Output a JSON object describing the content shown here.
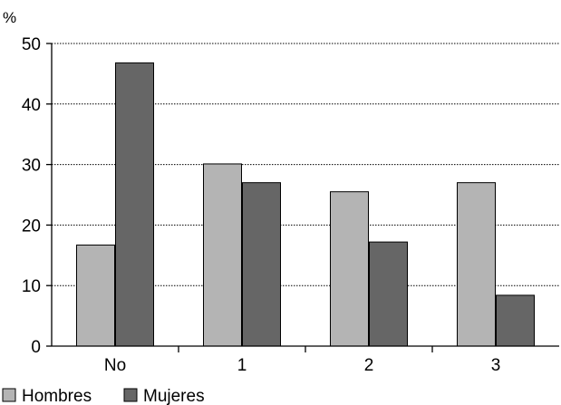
{
  "chart_data": {
    "type": "bar",
    "ylabel": "%",
    "ylim": [
      0,
      50
    ],
    "yticks": [
      0,
      10,
      20,
      30,
      40,
      50
    ],
    "grid": true,
    "legend_position": "bottom-left",
    "categories": [
      "No",
      "1",
      "2",
      "3"
    ],
    "series": [
      {
        "name": "Hombres",
        "color": "#b4b4b4",
        "values": [
          16.7,
          30.1,
          25.5,
          27.0
        ]
      },
      {
        "name": "Mujeres",
        "color": "#666666",
        "values": [
          46.8,
          27.0,
          17.2,
          8.4
        ]
      }
    ]
  }
}
